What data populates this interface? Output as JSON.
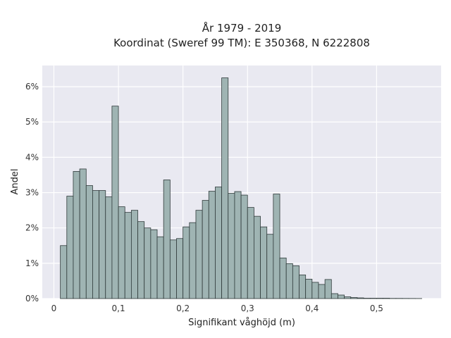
{
  "chart_data": {
    "type": "bar",
    "title_line1": "År 1979 - 2019",
    "title_line2": "Koordinat (Sweref 99 TM): E 350368, N 6222808",
    "xlabel": "Signifikant våghöjd (m)",
    "ylabel": "Andel",
    "xlim": [
      -0.018,
      0.6
    ],
    "ylim": [
      0,
      6.6
    ],
    "x_ticks": [
      0,
      0.1,
      0.2,
      0.3,
      0.4,
      0.5
    ],
    "x_tick_labels": [
      "0",
      "0,1",
      "0,2",
      "0,3",
      "0,4",
      "0,5"
    ],
    "y_ticks": [
      0,
      1,
      2,
      3,
      4,
      5,
      6
    ],
    "y_tick_labels": [
      "0%",
      "1%",
      "2%",
      "3%",
      "4%",
      "5%",
      "6%"
    ],
    "bin_width": 0.01,
    "bin_starts": [
      0.01,
      0.02,
      0.03,
      0.04,
      0.05,
      0.06,
      0.07,
      0.08,
      0.09,
      0.1,
      0.11,
      0.12,
      0.13,
      0.14,
      0.15,
      0.16,
      0.17,
      0.18,
      0.19,
      0.2,
      0.21,
      0.22,
      0.23,
      0.24,
      0.25,
      0.26,
      0.27,
      0.28,
      0.29,
      0.3,
      0.31,
      0.32,
      0.33,
      0.34,
      0.35,
      0.36,
      0.37,
      0.38,
      0.39,
      0.4,
      0.41,
      0.42,
      0.43,
      0.44,
      0.45,
      0.46,
      0.47,
      0.48,
      0.49,
      0.5,
      0.51,
      0.52,
      0.53,
      0.54,
      0.55,
      0.56
    ],
    "values": [
      1.5,
      2.9,
      3.6,
      3.67,
      3.2,
      3.06,
      3.06,
      2.88,
      5.45,
      2.6,
      2.44,
      2.5,
      2.18,
      2.0,
      1.95,
      1.75,
      3.36,
      1.66,
      1.7,
      2.03,
      2.15,
      2.5,
      2.78,
      3.04,
      3.16,
      6.25,
      2.98,
      3.03,
      2.93,
      2.58,
      2.33,
      2.03,
      1.82,
      2.96,
      1.15,
      0.99,
      0.93,
      0.67,
      0.55,
      0.46,
      0.4,
      0.54,
      0.14,
      0.1,
      0.05,
      0.03,
      0.02,
      0.01,
      0.01,
      0.01,
      0.01,
      0.005,
      0.005,
      0.004,
      0.003,
      0.002
    ],
    "grid": true,
    "background": "#e9e9f1",
    "bar_color": "#9fb4b3",
    "bar_edge_color": "#2f3a3a"
  }
}
